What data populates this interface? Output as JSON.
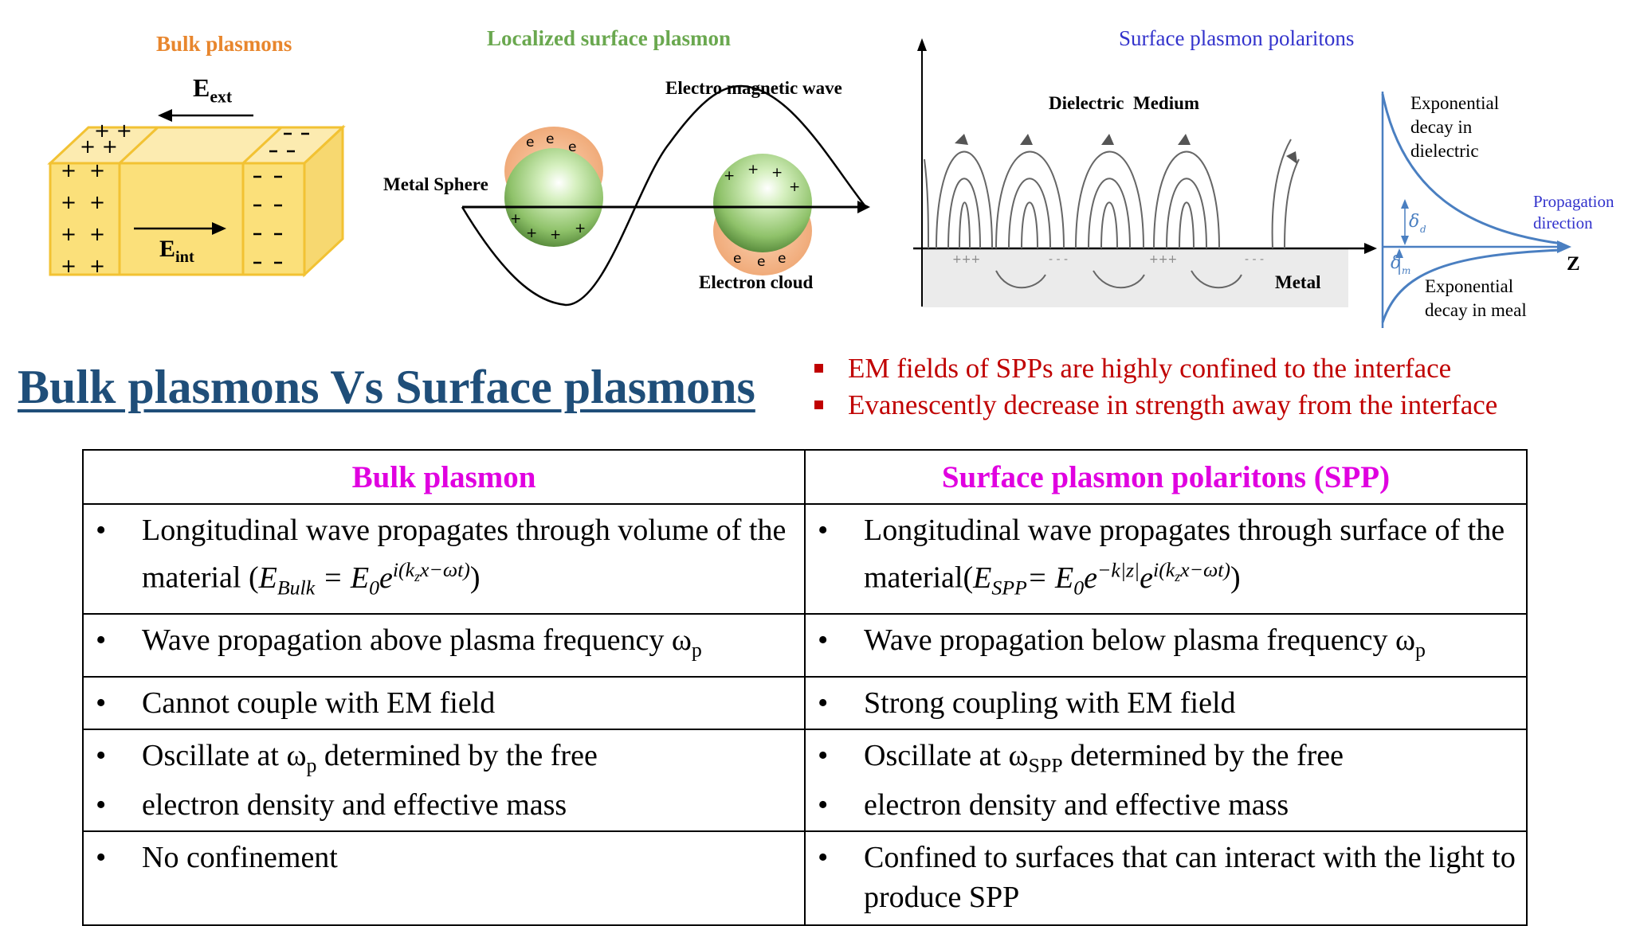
{
  "bulk_fig": {
    "title": "Bulk plasmons",
    "e_ext": "E",
    "e_ext_sub": "ext",
    "e_int": "E",
    "e_int_sub": "int",
    "colors": {
      "title": "#e8862d",
      "box": "#fbe07a"
    }
  },
  "lsp_fig": {
    "title": "Localized surface plasmon",
    "wave_label": "Electro magnetic wave",
    "sphere_label": "Metal Sphere",
    "cloud_label": "Electron cloud",
    "colors": {
      "title": "#6aa84f"
    }
  },
  "spp_fig": {
    "title": "Surface plasmon polaritons",
    "dielectric_label": "Dielectric  Medium",
    "metal_label": "Metal",
    "decay_dielectric_label": "Exponential decay in dielectric",
    "decay_metal_label": "Exponential decay in meal",
    "propagation_label": "Propagation direction",
    "axis_label": "Z",
    "delta_d": "δd",
    "delta_m": "δm",
    "colors": {
      "title": "#3333cc",
      "curve": "#4a7fc1"
    }
  },
  "main_title": "Bulk plasmons Vs Surface plasmons",
  "bullets": [
    "EM fields of SPPs are highly confined to the interface",
    "Evanescently decrease in strength away from the interface"
  ],
  "table": {
    "headers": [
      "Bulk plasmon",
      "Surface plasmon polaritons (SPP)"
    ],
    "rows": [
      {
        "left": [
          "Longitudinal wave propagates through volume of the material (E_Bulk = E_0 e^{i(k_z x − ωt)})"
        ],
        "right": [
          "Longitudinal wave propagates through surface of the material (E_SPP = E_0 e^{−k|z|} e^{i(k_z x − ωt)})"
        ]
      },
      {
        "left": [
          "Wave propagation above plasma frequency ωp"
        ],
        "right": [
          "Wave propagation below plasma frequency ωp"
        ]
      },
      {
        "left": [
          "Cannot couple with EM field"
        ],
        "right": [
          "Strong coupling with EM field"
        ]
      },
      {
        "left": [
          "Oscillate at ωp determined by the free",
          "electron density and effective mass"
        ],
        "right": [
          "Oscillate at ωSPP determined by the free",
          "electron density and effective mass"
        ]
      },
      {
        "left": [
          "No confinement"
        ],
        "right": [
          "Confined to surfaces that can interact with the light to produce SPP"
        ]
      }
    ]
  }
}
